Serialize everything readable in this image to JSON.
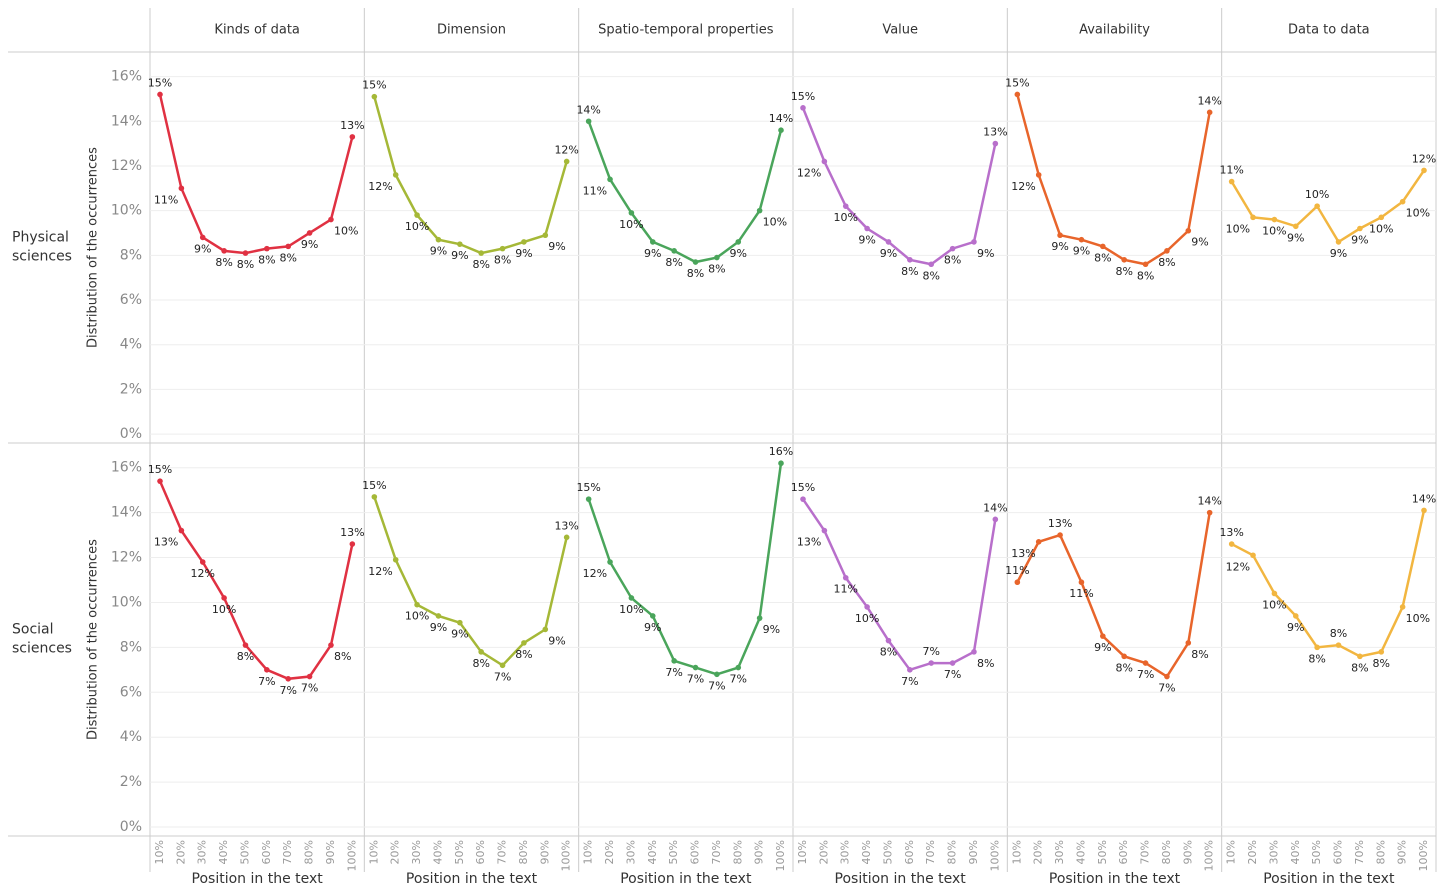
{
  "chart_data": {
    "type": "line",
    "y_label": "Distribution of the occurrences",
    "x_label": "Position in the text",
    "categories": [
      "10%",
      "20%",
      "30%",
      "40%",
      "50%",
      "60%",
      "70%",
      "80%",
      "90%",
      "100%"
    ],
    "ylim": [
      -0.4,
      17.1
    ],
    "yticks": [
      {
        "value": 0,
        "label": "0%"
      },
      {
        "value": 2,
        "label": "2%"
      },
      {
        "value": 4,
        "label": "4%"
      },
      {
        "value": 6,
        "label": "6%"
      },
      {
        "value": 8,
        "label": "8%"
      },
      {
        "value": 10,
        "label": "10%"
      },
      {
        "value": 12,
        "label": "12%"
      },
      {
        "value": 14,
        "label": "14%"
      },
      {
        "value": 16,
        "label": "16%"
      }
    ],
    "grid": true,
    "columns": [
      {
        "name": "Kinds of data",
        "color": "#e03142"
      },
      {
        "name": "Dimension",
        "color": "#a5b837"
      },
      {
        "name": "Spatio-temporal properties",
        "color": "#4aa55b"
      },
      {
        "name": "Value",
        "color": "#b86fcb"
      },
      {
        "name": "Availability",
        "color": "#e8652b"
      },
      {
        "name": "Data to data",
        "color": "#f2b640"
      }
    ],
    "rows": [
      {
        "name": "Physical sciences",
        "series": [
          {
            "values": [
              15.2,
              11.0,
              8.8,
              8.2,
              8.1,
              8.3,
              8.4,
              9.0,
              9.6,
              13.3
            ],
            "value_labels": [
              "15%",
              "11%",
              "9%",
              "8%",
              "8%",
              "8%",
              "8%",
              "9%",
              "10%",
              "13%"
            ]
          },
          {
            "values": [
              15.1,
              11.6,
              9.8,
              8.7,
              8.5,
              8.1,
              8.3,
              8.6,
              8.9,
              12.2
            ],
            "value_labels": [
              "15%",
              "12%",
              "10%",
              "9%",
              "9%",
              "8%",
              "8%",
              "9%",
              "9%",
              "12%"
            ]
          },
          {
            "values": [
              14.0,
              11.4,
              9.9,
              8.6,
              8.2,
              7.7,
              7.9,
              8.6,
              10.0,
              13.6
            ],
            "value_labels": [
              "14%",
              "11%",
              "10%",
              "9%",
              "8%",
              "8%",
              "8%",
              "9%",
              "10%",
              "14%"
            ]
          },
          {
            "values": [
              14.6,
              12.2,
              10.2,
              9.2,
              8.6,
              7.8,
              7.6,
              8.3,
              8.6,
              13.0
            ],
            "value_labels": [
              "15%",
              "12%",
              "10%",
              "9%",
              "9%",
              "8%",
              "8%",
              "8%",
              "9%",
              "13%"
            ]
          },
          {
            "values": [
              15.2,
              11.6,
              8.9,
              8.7,
              8.4,
              7.8,
              7.6,
              8.2,
              9.1,
              14.4
            ],
            "value_labels": [
              "15%",
              "12%",
              "9%",
              "9%",
              "8%",
              "8%",
              "8%",
              "8%",
              "9%",
              "14%"
            ]
          },
          {
            "values": [
              11.3,
              9.7,
              9.6,
              9.3,
              10.2,
              8.6,
              9.2,
              9.7,
              10.4,
              11.8
            ],
            "value_labels": [
              "11%",
              "10%",
              "10%",
              "9%",
              "10%",
              "9%",
              "9%",
              "10%",
              "10%",
              "12%"
            ]
          }
        ]
      },
      {
        "name": "Social sciences",
        "series": [
          {
            "values": [
              15.4,
              13.2,
              11.8,
              10.2,
              8.1,
              7.0,
              6.6,
              6.7,
              8.1,
              12.6
            ],
            "value_labels": [
              "15%",
              "13%",
              "12%",
              "10%",
              "8%",
              "7%",
              "7%",
              "7%",
              "8%",
              "13%"
            ]
          },
          {
            "values": [
              14.7,
              11.9,
              9.9,
              9.4,
              9.1,
              7.8,
              7.2,
              8.2,
              8.8,
              12.9
            ],
            "value_labels": [
              "15%",
              "12%",
              "10%",
              "9%",
              "9%",
              "8%",
              "7%",
              "8%",
              "9%",
              "13%"
            ]
          },
          {
            "values": [
              14.6,
              11.8,
              10.2,
              9.4,
              7.4,
              7.1,
              6.8,
              7.1,
              9.3,
              16.2
            ],
            "value_labels": [
              "15%",
              "12%",
              "10%",
              "9%",
              "7%",
              "7%",
              "7%",
              "7%",
              "9%",
              "16%"
            ]
          },
          {
            "values": [
              14.6,
              13.2,
              11.1,
              9.8,
              8.3,
              7.0,
              7.3,
              7.3,
              7.8,
              13.7
            ],
            "value_labels": [
              "15%",
              "13%",
              "11%",
              "10%",
              "8%",
              "7%",
              "7%",
              "7%",
              "8%",
              "14%"
            ]
          },
          {
            "values": [
              10.9,
              12.7,
              13.0,
              10.9,
              8.5,
              7.6,
              7.3,
              6.7,
              8.2,
              14.0
            ],
            "value_labels": [
              "11%",
              "13%",
              "13%",
              "11%",
              "9%",
              "8%",
              "7%",
              "7%",
              "8%",
              "14%"
            ]
          },
          {
            "values": [
              12.6,
              12.1,
              10.4,
              9.4,
              8.0,
              8.1,
              7.6,
              7.8,
              9.8,
              14.1
            ],
            "value_labels": [
              "13%",
              "12%",
              "10%",
              "9%",
              "8%",
              "8%",
              "8%",
              "8%",
              "10%",
              "14%"
            ]
          }
        ]
      }
    ]
  }
}
